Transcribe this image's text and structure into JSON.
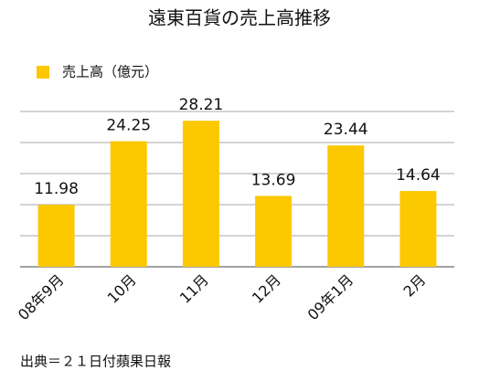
{
  "chart_data": {
    "type": "bar",
    "title": "遠東百貨の売上高推移",
    "categories": [
      "08年9月",
      "10月",
      "11月",
      "12月",
      "09年1月",
      "2月"
    ],
    "series": [
      {
        "name": "売上高（億元）",
        "color": "#fcc800",
        "values": [
          11.98,
          24.25,
          28.21,
          13.69,
          23.44,
          14.64
        ]
      }
    ],
    "ylim": [
      0,
      30
    ],
    "yticks": [
      0,
      6,
      12,
      18,
      24,
      30
    ],
    "grid": true,
    "legend": "top-left",
    "source": "出典＝２１日付蘋果日報"
  }
}
